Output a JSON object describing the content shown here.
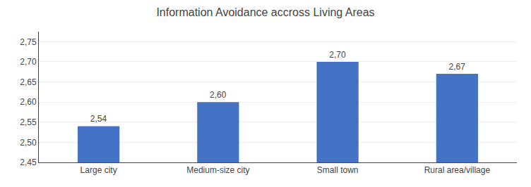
{
  "chart_data": {
    "type": "bar",
    "title": "Information Avoidance accross Living Areas",
    "categories": [
      "Large city",
      "Medium-size city",
      "Small town",
      "Rural area/village"
    ],
    "values": [
      2.54,
      2.6,
      2.7,
      2.67
    ],
    "value_labels": [
      "2,54",
      "2,60",
      "2,70",
      "2,67"
    ],
    "data_labels": true,
    "color": "#4472C4",
    "ylim": [
      2.45,
      2.775
    ],
    "yticks": [
      {
        "value": 2.45,
        "label": "2,45"
      },
      {
        "value": 2.5,
        "label": "2,50"
      },
      {
        "value": 2.55,
        "label": "2,55"
      },
      {
        "value": 2.6,
        "label": "2,60"
      },
      {
        "value": 2.65,
        "label": "2,65"
      },
      {
        "value": 2.7,
        "label": "2,70"
      },
      {
        "value": 2.75,
        "label": "2,75"
      }
    ],
    "grid": true
  }
}
